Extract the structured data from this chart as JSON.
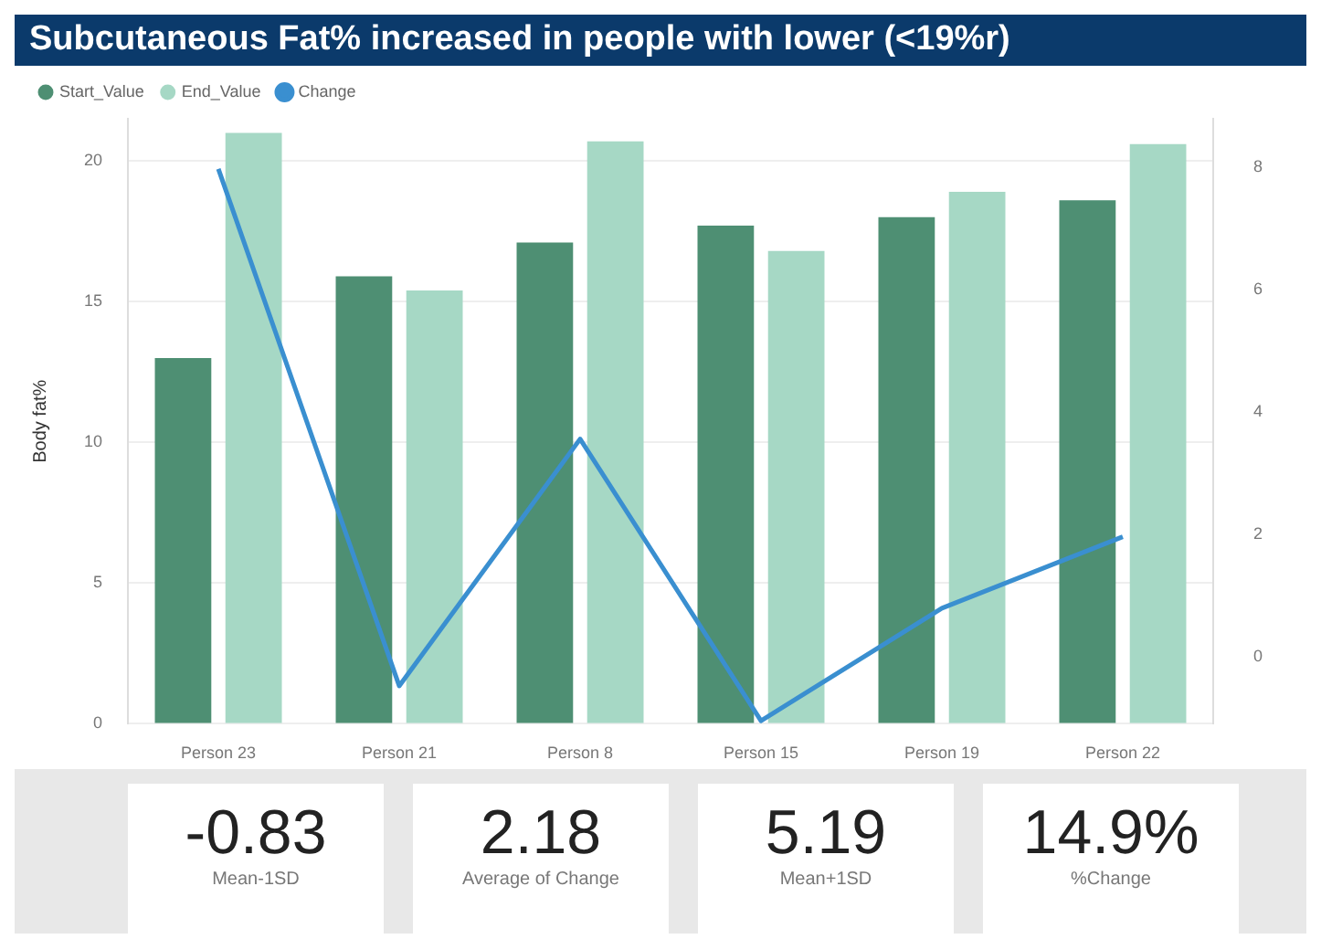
{
  "chart_data": {
    "type": "bar",
    "title": "Subcutaneous Fat% increased in people with lower (<19%r)",
    "ylabel": "Body fat%",
    "categories": [
      "Person 23",
      "Person 21",
      "Person 8",
      "Person 15",
      "Person 19",
      "Person 22"
    ],
    "series": [
      {
        "name": "Start_Value",
        "color": "#4e8f73",
        "values": [
          13.0,
          15.9,
          17.1,
          17.7,
          18.0,
          18.6
        ]
      },
      {
        "name": "End_Value",
        "color": "#a6d8c5",
        "values": [
          21.0,
          15.4,
          20.7,
          16.8,
          18.9,
          20.6
        ]
      },
      {
        "name": "Change",
        "type": "line",
        "axis": "y2",
        "color": "#3a8fd0",
        "values": [
          7.98,
          -0.48,
          3.56,
          -1.05,
          0.79,
          1.96
        ]
      }
    ],
    "ylim": [
      0,
      21.5
    ],
    "yticks": [
      0,
      5,
      10,
      15,
      20
    ],
    "y2lim": [
      -1.1,
      8.8
    ],
    "y2ticks": [
      0,
      2,
      4,
      6,
      8
    ],
    "grid": "y",
    "legend": "top left",
    "marker": "none",
    "annotations": [
      "-0.83",
      "Mean-1SD",
      "2.18",
      "Average of Change",
      "5.19",
      "Mean+1SD",
      "14.9%",
      "%Change"
    ]
  }
}
